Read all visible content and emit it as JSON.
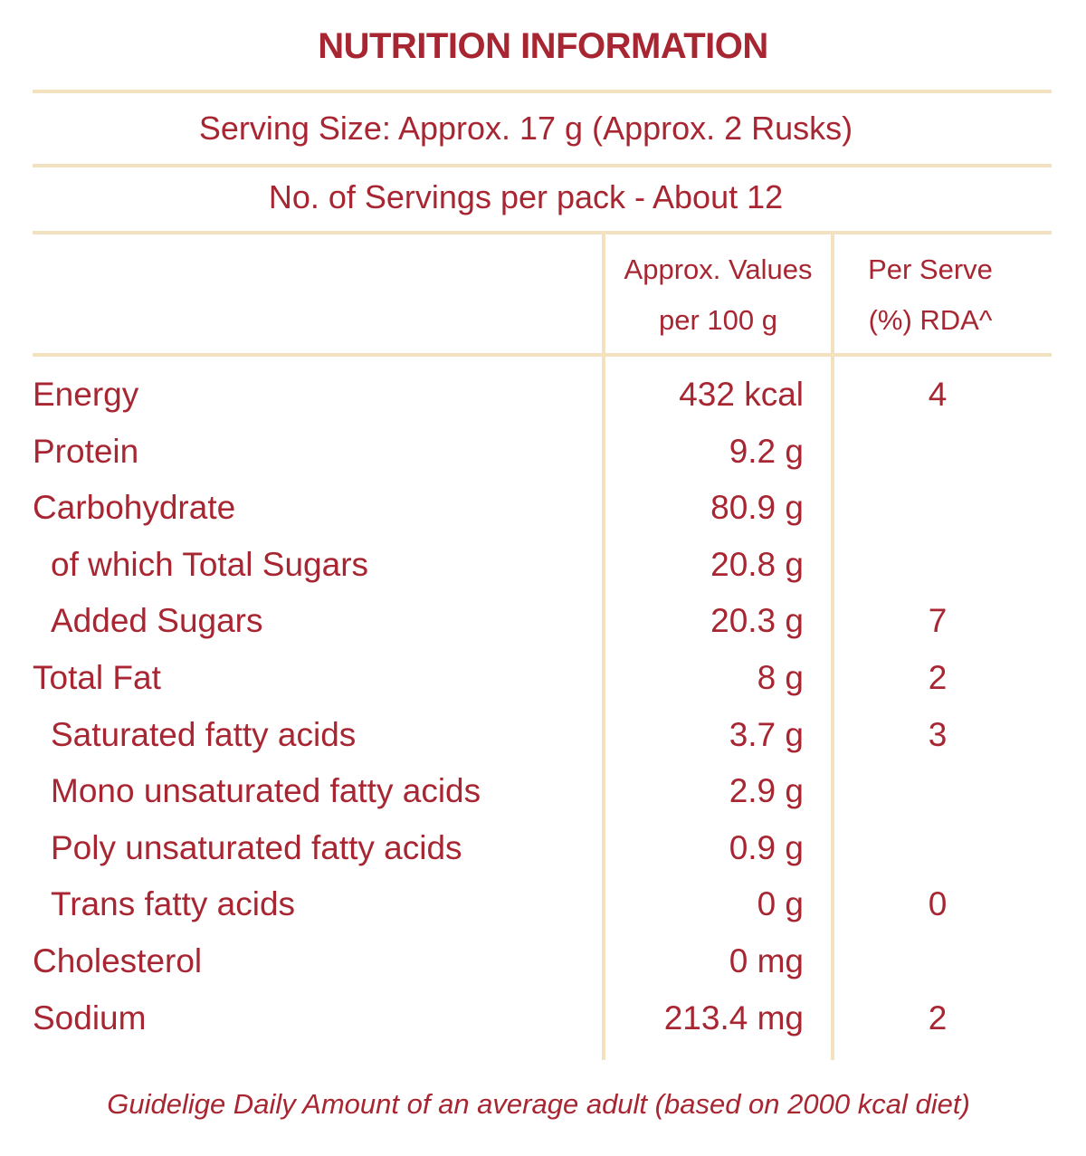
{
  "title": "NUTRITION INFORMATION",
  "serving_size": "Serving Size: Approx. 17 g (Approx. 2 Rusks)",
  "servings_per_pack": "No. of Servings per pack - About 12",
  "columns": {
    "values_line1": "Approx. Values",
    "values_line2": "per 100 g",
    "rda_line1": "Per Serve",
    "rda_line2": "(%) RDA^"
  },
  "rows": [
    {
      "label": "Energy",
      "indent": false,
      "value": "432 kcal",
      "rda": "4"
    },
    {
      "label": "Protein",
      "indent": false,
      "value": "9.2 g",
      "rda": ""
    },
    {
      "label": "Carbohydrate",
      "indent": false,
      "value": "80.9 g",
      "rda": ""
    },
    {
      "label": "of which Total Sugars",
      "indent": true,
      "value": "20.8 g",
      "rda": ""
    },
    {
      "label": "Added Sugars",
      "indent": true,
      "value": "20.3 g",
      "rda": "7"
    },
    {
      "label": "Total Fat",
      "indent": false,
      "value": "8 g",
      "rda": "2"
    },
    {
      "label": "Saturated fatty acids",
      "indent": true,
      "value": "3.7 g",
      "rda": "3"
    },
    {
      "label": "Mono unsaturated fatty acids",
      "indent": true,
      "value": "2.9 g",
      "rda": ""
    },
    {
      "label": "Poly unsaturated fatty acids",
      "indent": true,
      "value": "0.9 g",
      "rda": ""
    },
    {
      "label": "Trans fatty acids",
      "indent": true,
      "value": "0 g",
      "rda": "0"
    },
    {
      "label": "Cholesterol",
      "indent": false,
      "value": "0 mg",
      "rda": ""
    },
    {
      "label": "Sodium",
      "indent": false,
      "value": "213.4 mg",
      "rda": "2"
    }
  ],
  "footnote": "Guidelige Daily Amount of an average adult (based on 2000 kcal diet)",
  "colors": {
    "text": "#a82632",
    "rules": "#f2e2bf"
  }
}
